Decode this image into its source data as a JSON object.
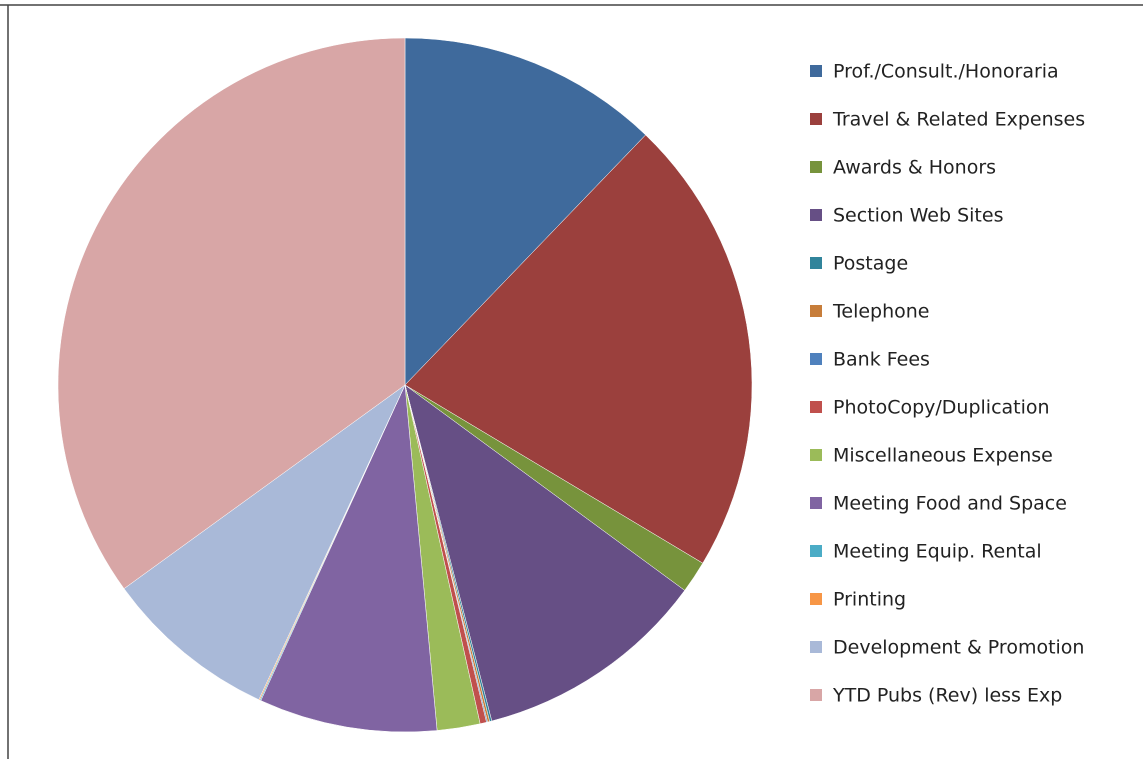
{
  "chart_data": {
    "type": "pie",
    "categories": [
      "Prof./Consult./Honoraria",
      "Travel & Related Expenses",
      "Awards & Honors",
      "Section Web Sites",
      "Postage",
      "Telephone",
      "Bank Fees",
      "PhotoCopy/Duplication",
      "Miscellaneous Expense",
      "Meeting Food and Space",
      "Meeting Equip. Rental",
      "Printing",
      "Development & Promotion",
      "YTD Pubs (Rev) less Exp"
    ],
    "values": [
      12.2,
      21.4,
      1.5,
      10.9,
      0.1,
      0.1,
      0.05,
      0.3,
      2.0,
      8.3,
      0.05,
      0.05,
      8.1,
      35.0
    ],
    "colors": [
      "#3f6a9c",
      "#9b403d",
      "#77933c",
      "#664f85",
      "#31849b",
      "#c77d3a",
      "#4f81bd",
      "#c0504d",
      "#9bbb59",
      "#8064a2",
      "#4bacc6",
      "#f79646",
      "#a9b9d8",
      "#d8a6a6"
    ],
    "legend": "right"
  }
}
